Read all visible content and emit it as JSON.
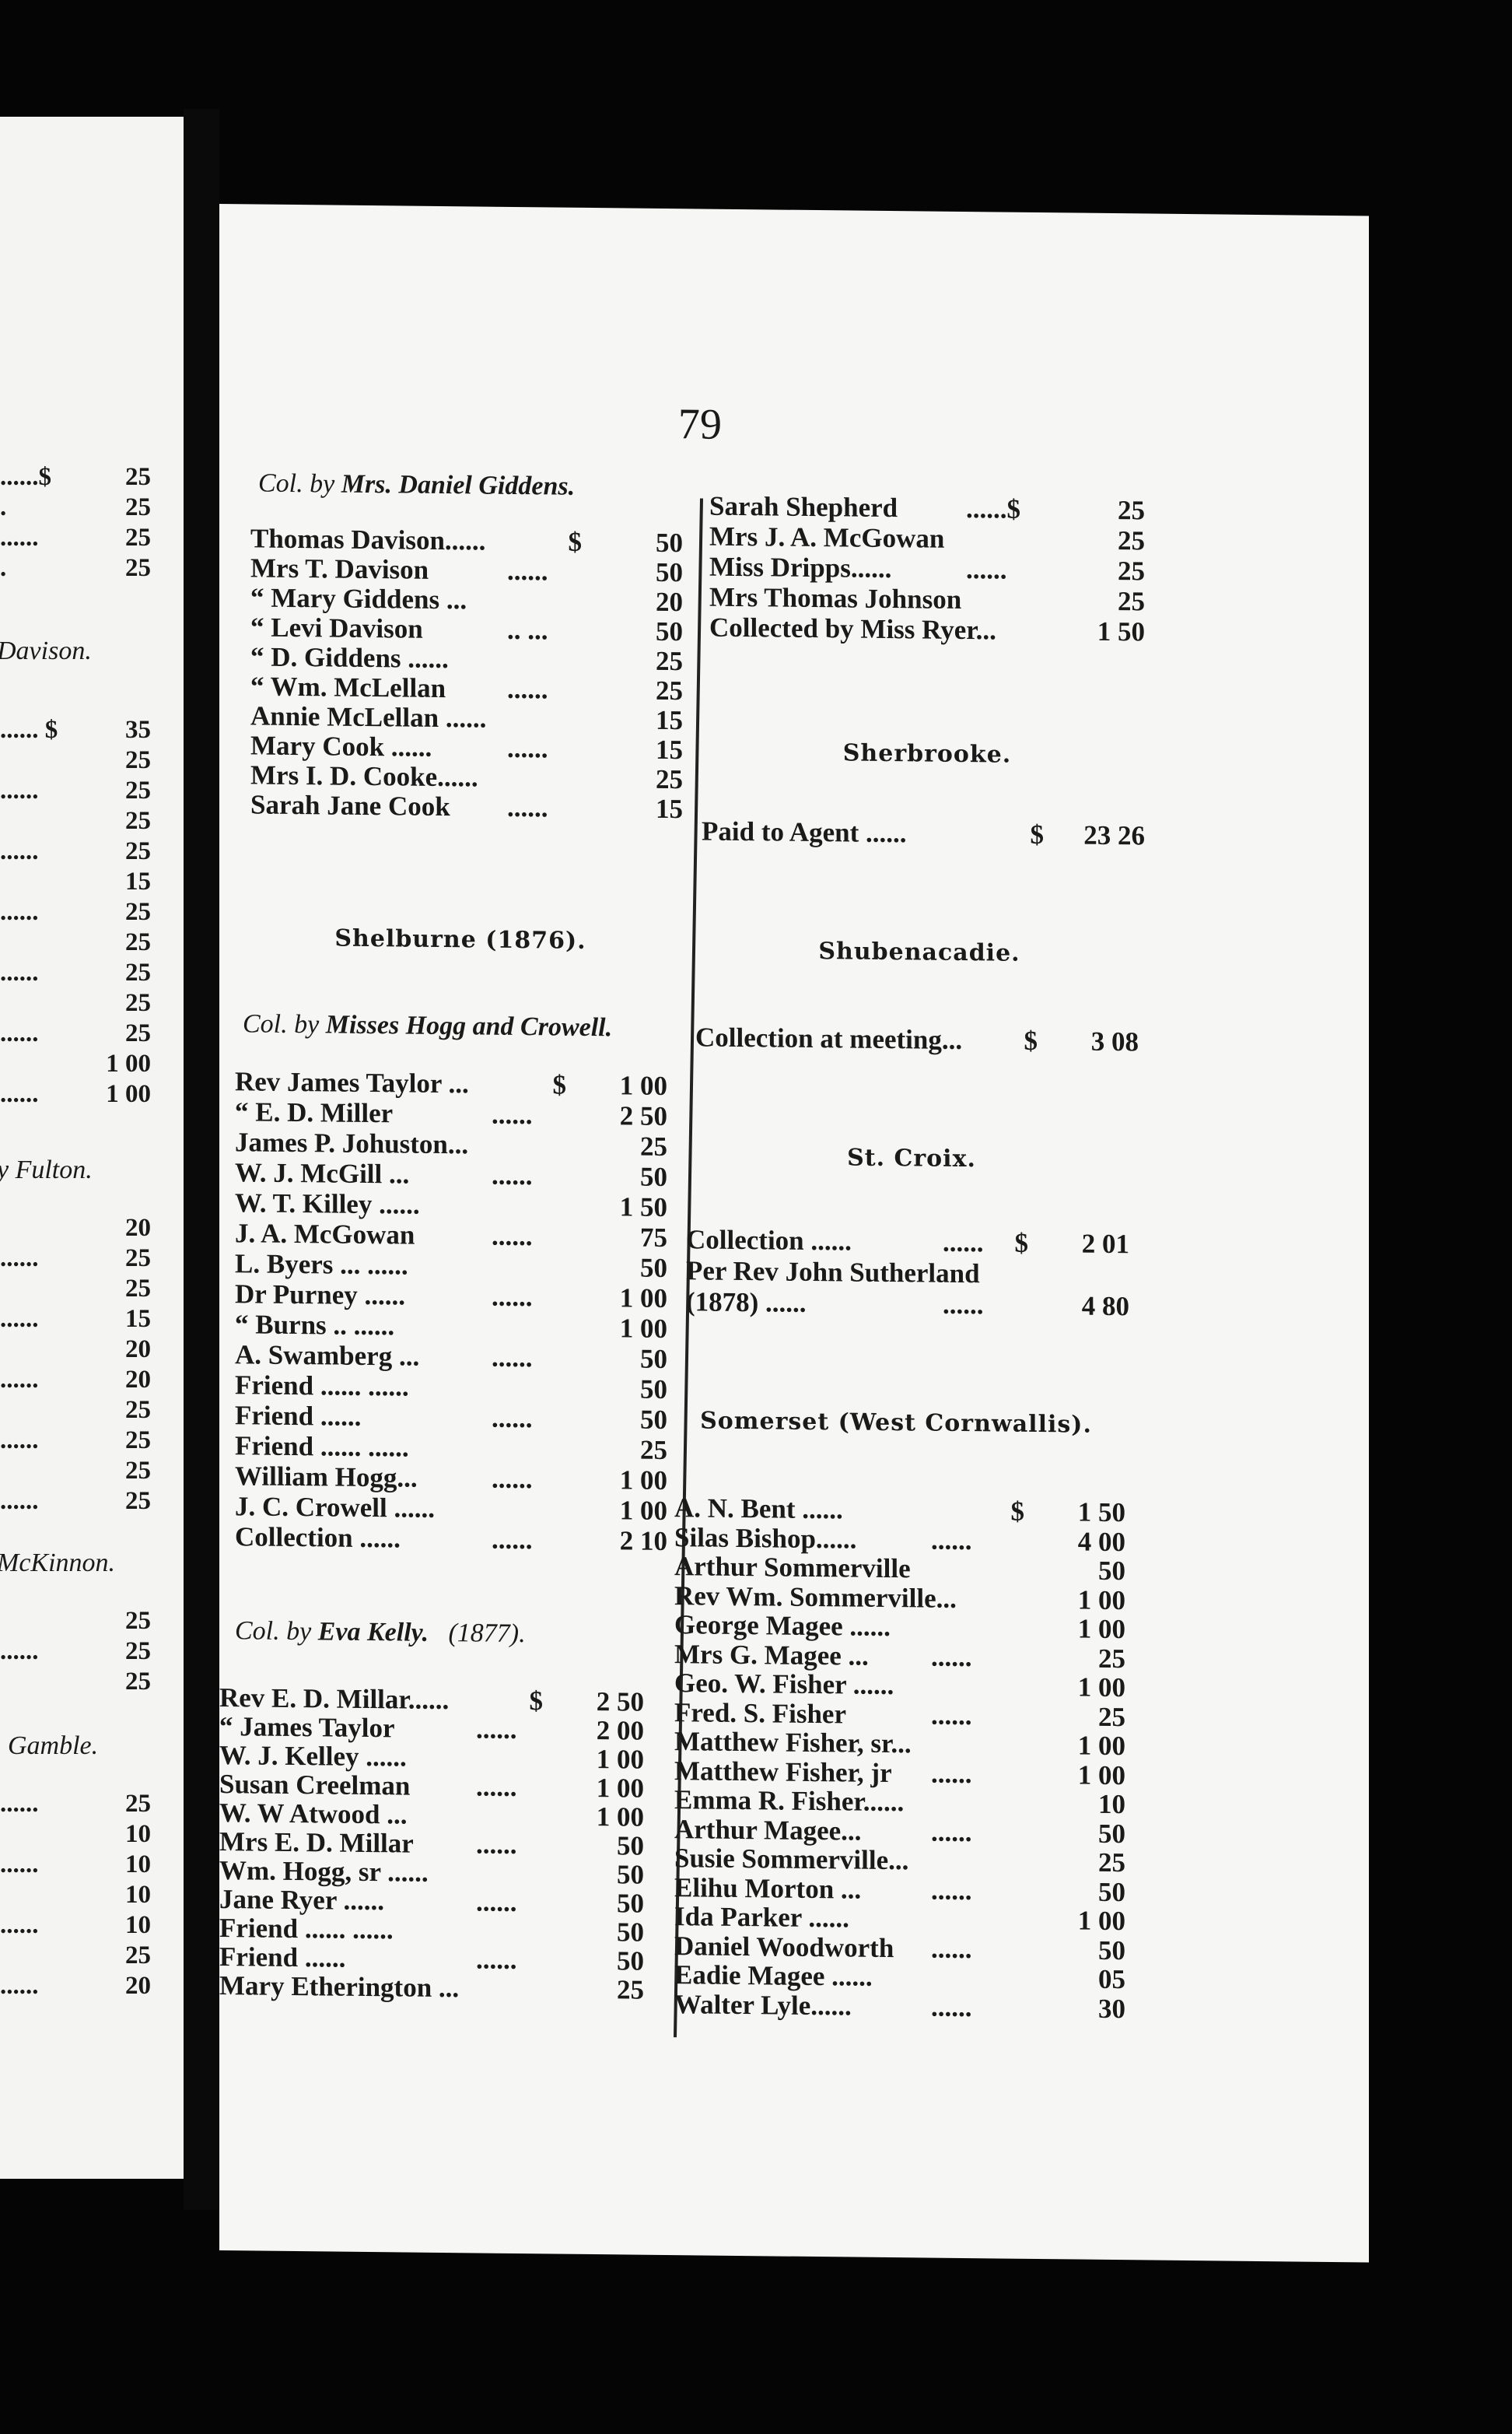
{
  "page_number": "79",
  "left_page": {
    "block1": [
      {
        "lead": "......$",
        "amt": "25"
      },
      {
        "lead": ".",
        "amt": "25"
      },
      {
        "lead": "......",
        "amt": "25"
      },
      {
        "lead": ".",
        "amt": "25"
      }
    ],
    "heading2": "Davison.",
    "block2": [
      {
        "lead": "......  $",
        "amt": "35"
      },
      {
        "lead": "",
        "amt": "25"
      },
      {
        "lead": "......",
        "amt": "25"
      },
      {
        "lead": "",
        "amt": "25"
      },
      {
        "lead": "......",
        "amt": "25"
      },
      {
        "lead": "",
        "amt": "15"
      },
      {
        "lead": "......",
        "amt": "25"
      },
      {
        "lead": "",
        "amt": "25"
      },
      {
        "lead": "......",
        "amt": "25"
      },
      {
        "lead": "",
        "amt": "25"
      },
      {
        "lead": "......",
        "amt": "25"
      },
      {
        "lead": "",
        "amt": "1 00"
      },
      {
        "lead": "......",
        "amt": "1 00"
      }
    ],
    "heading3": "y Fulton.",
    "block3": [
      {
        "lead": "",
        "amt": "20"
      },
      {
        "lead": "......",
        "amt": "25"
      },
      {
        "lead": "",
        "amt": "25"
      },
      {
        "lead": "......",
        "amt": "15"
      },
      {
        "lead": "",
        "amt": "20"
      },
      {
        "lead": "......",
        "amt": "20"
      },
      {
        "lead": "",
        "amt": "25"
      },
      {
        "lead": "......",
        "amt": "25"
      },
      {
        "lead": "",
        "amt": "25"
      },
      {
        "lead": "......",
        "amt": "25"
      }
    ],
    "heading4": "McKinnon.",
    "block4": [
      {
        "lead": "",
        "amt": "25"
      },
      {
        "lead": "......",
        "amt": "25"
      },
      {
        "lead": "",
        "amt": "25"
      }
    ],
    "heading5": "Gamble.",
    "block5": [
      {
        "lead": "......",
        "amt": "25"
      },
      {
        "lead": "",
        "amt": "10"
      },
      {
        "lead": "......",
        "amt": "10"
      },
      {
        "lead": "",
        "amt": "10"
      },
      {
        "lead": "......",
        "amt": "10"
      },
      {
        "lead": "",
        "amt": "25"
      },
      {
        "lead": "......",
        "amt": "20"
      }
    ]
  },
  "col_left": {
    "giddens_heading": {
      "pre": "Col. by ",
      "name": "Mrs. Daniel Giddens."
    },
    "giddens": [
      {
        "name": "Thomas Davison......",
        "lead": "",
        "cur": "$",
        "amt": "50"
      },
      {
        "name": "Mrs T. Davison",
        "lead": "......",
        "cur": "",
        "amt": "50"
      },
      {
        "name": "  “ Mary Giddens ...",
        "lead": "",
        "cur": "",
        "amt": "20"
      },
      {
        "name": "  “ Levi Davison",
        "lead": ".. ...",
        "cur": "",
        "amt": "50"
      },
      {
        "name": "  “ D. Giddens ......",
        "lead": "",
        "cur": "",
        "amt": "25"
      },
      {
        "name": "  “ Wm. McLellan",
        "lead": "......",
        "cur": "",
        "amt": "25"
      },
      {
        "name": "Annie McLellan ......",
        "lead": "",
        "cur": "",
        "amt": "15"
      },
      {
        "name": "Mary Cook   ......",
        "lead": "......",
        "cur": "",
        "amt": "15"
      },
      {
        "name": "Mrs I. D. Cooke......",
        "lead": "",
        "cur": "",
        "amt": "25"
      },
      {
        "name": "Sarah Jane Cook",
        "lead": "......",
        "cur": "",
        "amt": "15"
      }
    ],
    "shelburne_heading": "Shelburne (1876).",
    "hogg_heading": {
      "pre": "Col. by ",
      "name": "Misses Hogg and Crowell."
    },
    "hogg": [
      {
        "name": "Rev James Taylor ...",
        "lead": "",
        "cur": "$",
        "amt": "1 00"
      },
      {
        "name": "   “   E. D. Miller",
        "lead": "......",
        "cur": "",
        "amt": "2 50"
      },
      {
        "name": "James P. Johuston...",
        "lead": "",
        "cur": "",
        "amt": "25"
      },
      {
        "name": "W. J. McGill ...",
        "lead": "......",
        "cur": "",
        "amt": "50"
      },
      {
        "name": "W. T. Killey   ......",
        "lead": "",
        "cur": "",
        "amt": "1 50"
      },
      {
        "name": "J. A. McGowan",
        "lead": "......",
        "cur": "",
        "amt": "75"
      },
      {
        "name": "L. Byers ...   ......",
        "lead": "",
        "cur": "",
        "amt": "50"
      },
      {
        "name": "Dr Purney ......",
        "lead": "......",
        "cur": "",
        "amt": "1 00"
      },
      {
        "name": " “ Burns ..   ......",
        "lead": "",
        "cur": "",
        "amt": "1 00"
      },
      {
        "name": "A. Swamberg ...",
        "lead": "......",
        "cur": "",
        "amt": "50"
      },
      {
        "name": "Friend ......   ......",
        "lead": "",
        "cur": "",
        "amt": "50"
      },
      {
        "name": "Friend     ......",
        "lead": "......",
        "cur": "",
        "amt": "50"
      },
      {
        "name": "Friend ......   ......",
        "lead": "",
        "cur": "",
        "amt": "25"
      },
      {
        "name": "William Hogg...",
        "lead": "......",
        "cur": "",
        "amt": "1 00"
      },
      {
        "name": "J. C. Crowell   ......",
        "lead": "",
        "cur": "",
        "amt": "1 00"
      },
      {
        "name": "Collection ......",
        "lead": "......",
        "cur": "",
        "amt": "2 10"
      }
    ],
    "kelly_heading": {
      "pre": "Col. by ",
      "name": "Eva Kelly.",
      "year": "(1877)."
    },
    "kelly": [
      {
        "name": "Rev E. D. Millar......",
        "lead": "",
        "cur": "$",
        "amt": "2 50"
      },
      {
        "name": "  “   James Taylor",
        "lead": "......",
        "cur": "",
        "amt": "2 00"
      },
      {
        "name": "W. J. Kelley   ......",
        "lead": "",
        "cur": "",
        "amt": "1 00"
      },
      {
        "name": "Susan Creelman",
        "lead": "......",
        "cur": "",
        "amt": "1 00"
      },
      {
        "name": "W. W  Atwood    ...",
        "lead": "",
        "cur": "",
        "amt": "1 00"
      },
      {
        "name": "Mrs E. D. Millar",
        "lead": "......",
        "cur": "",
        "amt": "50"
      },
      {
        "name": "Wm. Hogg, sr  ......",
        "lead": "",
        "cur": "",
        "amt": "50"
      },
      {
        "name": "Jane Ryer  ......",
        "lead": "......",
        "cur": "",
        "amt": "50"
      },
      {
        "name": "Friend ......  ......",
        "lead": "",
        "cur": "",
        "amt": "50"
      },
      {
        "name": "Friend     ......",
        "lead": "......",
        "cur": "",
        "amt": "50"
      },
      {
        "name": "Mary Etherington ...",
        "lead": "",
        "cur": "",
        "amt": "25"
      }
    ]
  },
  "col_right": {
    "ryer": [
      {
        "name": "Sarah Shepherd",
        "lead": "......$",
        "cur": "",
        "amt": "25"
      },
      {
        "name": "Mrs J. A. McGowan",
        "lead": "",
        "cur": "",
        "amt": "25"
      },
      {
        "name": "Miss Dripps......",
        "lead": "......",
        "cur": "",
        "amt": "25"
      },
      {
        "name": "Mrs Thomas Johnson",
        "lead": "",
        "cur": "",
        "amt": "25"
      },
      {
        "name": "Collected by Miss Ryer...",
        "lead": "",
        "cur": "",
        "amt": "1 50"
      }
    ],
    "sherbrooke_heading": "Sherbrooke.",
    "sherbrooke": [
      {
        "name": "Paid to Agent ......",
        "lead": "",
        "cur": "$",
        "amt": "23 26"
      }
    ],
    "shubenacadie_heading": "Shubenacadie.",
    "shubenacadie": [
      {
        "name": "Collection at meeting...",
        "lead": "",
        "cur": "$",
        "amt": "3 08"
      }
    ],
    "stcroix_heading": "St. Croix.",
    "stcroix": [
      {
        "name": "Collection  ......",
        "lead": "......",
        "cur": "$",
        "amt": "2 01"
      },
      {
        "name": "Per Rev John Sutherland",
        "lead": "",
        "cur": "",
        "amt": ""
      },
      {
        "name": "   (1878)   ......",
        "lead": "......",
        "cur": "",
        "amt": "4 80"
      }
    ],
    "somerset_heading": "Somerset (West Cornwallis).",
    "somerset": [
      {
        "name": "A. N. Bent    ......",
        "lead": "",
        "cur": "$",
        "amt": "1 50"
      },
      {
        "name": "Silas Bishop......",
        "lead": "......",
        "cur": "",
        "amt": "4 00"
      },
      {
        "name": "Arthur Sommerville",
        "lead": "",
        "cur": "",
        "amt": "50"
      },
      {
        "name": "Rev Wm. Sommerville...",
        "lead": "",
        "cur": "",
        "amt": "1 00"
      },
      {
        "name": "George Magee  ......",
        "lead": "",
        "cur": "",
        "amt": "1 00"
      },
      {
        "name": "Mrs G. Magee ...",
        "lead": "......",
        "cur": "",
        "amt": "25"
      },
      {
        "name": "Geo. W. Fisher ......",
        "lead": "",
        "cur": "",
        "amt": "1 00"
      },
      {
        "name": "Fred. S. Fisher",
        "lead": "......",
        "cur": "",
        "amt": "25"
      },
      {
        "name": "Matthew Fisher, sr...",
        "lead": "",
        "cur": "",
        "amt": "1 00"
      },
      {
        "name": "Matthew Fisher, jr",
        "lead": "......",
        "cur": "",
        "amt": "1 00"
      },
      {
        "name": "Emma R. Fisher......",
        "lead": "",
        "cur": "",
        "amt": "10"
      },
      {
        "name": "Arthur Magee...",
        "lead": "......",
        "cur": "",
        "amt": "50"
      },
      {
        "name": "Susie Sommerville...",
        "lead": "",
        "cur": "",
        "amt": "25"
      },
      {
        "name": "Elihu Morton ...",
        "lead": "......",
        "cur": "",
        "amt": "50"
      },
      {
        "name": "Ida Parker     ......",
        "lead": "",
        "cur": "",
        "amt": "1 00"
      },
      {
        "name": "Daniel Woodworth",
        "lead": "......",
        "cur": "",
        "amt": "50"
      },
      {
        "name": "Eadie Magee   ......",
        "lead": "",
        "cur": "",
        "amt": "05"
      },
      {
        "name": "Walter Lyle......",
        "lead": "......",
        "cur": "",
        "amt": "30"
      }
    ]
  }
}
